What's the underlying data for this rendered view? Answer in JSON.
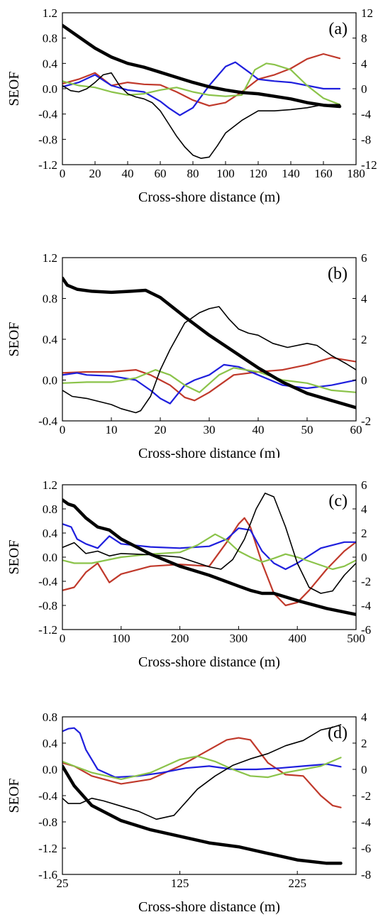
{
  "chart_data": [
    {
      "type": "line",
      "panel_label": "(a)",
      "xlabel": "Cross-shore distance (m)",
      "ylabel": "SEOF",
      "xlim": [
        0,
        180
      ],
      "xticks": [
        0,
        20,
        40,
        60,
        80,
        100,
        120,
        140,
        160,
        180
      ],
      "ylim": [
        -1.2,
        1.2
      ],
      "yticks": [
        "-1.2",
        "-0.8",
        "-0.4",
        "0.0",
        "0.4",
        "0.8",
        "1.2"
      ],
      "y2lim": [
        -12,
        12
      ],
      "y2ticks": [
        "-12",
        "-8",
        "-4",
        "0",
        "4",
        "8",
        "12"
      ],
      "series": [
        {
          "color": "#c0392b",
          "width": 2.2,
          "axis": "left",
          "x": [
            0,
            10,
            20,
            30,
            40,
            50,
            60,
            70,
            80,
            90,
            100,
            110,
            120,
            130,
            140,
            150,
            160,
            170
          ],
          "y": [
            0.08,
            0.15,
            0.25,
            0.05,
            0.1,
            0.07,
            0.06,
            -0.05,
            -0.18,
            -0.27,
            -0.22,
            -0.05,
            0.15,
            0.22,
            0.32,
            0.47,
            0.55,
            0.48
          ]
        },
        {
          "color": "#1f1fdd",
          "width": 2.2,
          "axis": "left",
          "x": [
            0,
            10,
            20,
            30,
            40,
            50,
            60,
            65,
            72,
            80,
            90,
            100,
            106,
            115,
            120,
            130,
            140,
            150,
            160,
            170
          ],
          "y": [
            0.03,
            0.1,
            0.22,
            0.05,
            -0.02,
            -0.05,
            -0.2,
            -0.3,
            -0.42,
            -0.3,
            0.05,
            0.35,
            0.42,
            0.25,
            0.15,
            0.12,
            0.1,
            0.05,
            0.0,
            0.0
          ]
        },
        {
          "color": "#8bc34a",
          "width": 2.2,
          "axis": "left",
          "x": [
            0,
            10,
            20,
            30,
            40,
            50,
            60,
            70,
            80,
            90,
            100,
            110,
            118,
            125,
            130,
            140,
            150,
            160,
            170
          ],
          "y": [
            0.12,
            0.05,
            0.02,
            -0.05,
            -0.1,
            -0.08,
            -0.02,
            0.02,
            -0.05,
            -0.1,
            -0.12,
            -0.1,
            0.3,
            0.4,
            0.38,
            0.3,
            0.05,
            -0.15,
            -0.25
          ]
        },
        {
          "color": "#000000",
          "width": 1.6,
          "axis": "right",
          "x": [
            0,
            5,
            10,
            15,
            20,
            25,
            30,
            35,
            40,
            45,
            50,
            55,
            60,
            65,
            70,
            75,
            80,
            85,
            90,
            95,
            100,
            110,
            120,
            130,
            140,
            150,
            160,
            170
          ],
          "y": [
            0.5,
            -0.3,
            -0.5,
            0.0,
            1.0,
            2.2,
            2.5,
            0.5,
            -0.8,
            -1.3,
            -1.6,
            -2.2,
            -3.5,
            -5.5,
            -7.5,
            -9.2,
            -10.5,
            -11,
            -10.8,
            -9,
            -7,
            -5,
            -3.5,
            -3.5,
            -3.3,
            -3,
            -2.5,
            -2.5
          ]
        },
        {
          "color": "#000000",
          "width": 4.5,
          "axis": "left",
          "x": [
            0,
            10,
            20,
            30,
            40,
            50,
            60,
            70,
            80,
            90,
            100,
            110,
            120,
            130,
            140,
            150,
            160,
            170
          ],
          "y": [
            1.0,
            0.82,
            0.64,
            0.5,
            0.4,
            0.34,
            0.26,
            0.18,
            0.1,
            0.03,
            -0.02,
            -0.06,
            -0.08,
            -0.12,
            -0.16,
            -0.22,
            -0.26,
            -0.28
          ]
        }
      ]
    },
    {
      "type": "line",
      "panel_label": "(b)",
      "xlabel": "Cross-shore distance (m)",
      "ylabel": "SEOF",
      "xlim": [
        0,
        60
      ],
      "xticks": [
        0,
        10,
        20,
        30,
        40,
        50,
        60
      ],
      "ylim": [
        -0.4,
        1.2
      ],
      "yticks": [
        "-0.4",
        "0.0",
        "0.4",
        "0.8",
        "1.2"
      ],
      "y2lim": [
        -2,
        6
      ],
      "y2ticks": [
        "-2",
        "0",
        "2",
        "4",
        "6"
      ],
      "series": [
        {
          "color": "#c0392b",
          "width": 2.2,
          "axis": "left",
          "x": [
            0,
            5,
            10,
            15,
            18,
            20,
            22,
            25,
            27,
            30,
            35,
            40,
            45,
            50,
            55,
            60
          ],
          "y": [
            0.07,
            0.08,
            0.08,
            0.1,
            0.05,
            0.0,
            -0.05,
            -0.17,
            -0.2,
            -0.12,
            0.05,
            0.08,
            0.1,
            0.15,
            0.22,
            0.18
          ]
        },
        {
          "color": "#1f1fdd",
          "width": 2.2,
          "axis": "left",
          "x": [
            0,
            3,
            5,
            10,
            15,
            18,
            20,
            22,
            25,
            27,
            30,
            33,
            36,
            40,
            45,
            50,
            55,
            60
          ],
          "y": [
            0.05,
            0.07,
            0.05,
            0.04,
            0.0,
            -0.1,
            -0.18,
            -0.23,
            -0.05,
            0.0,
            0.05,
            0.15,
            0.13,
            0.05,
            -0.05,
            -0.08,
            -0.05,
            0.0
          ]
        },
        {
          "color": "#8bc34a",
          "width": 2.2,
          "axis": "left",
          "x": [
            0,
            5,
            10,
            15,
            19,
            22,
            25,
            28,
            32,
            35,
            40,
            45,
            50,
            55,
            60
          ],
          "y": [
            -0.03,
            -0.02,
            -0.02,
            0.02,
            0.1,
            0.05,
            -0.05,
            -0.12,
            0.05,
            0.12,
            0.08,
            0.0,
            -0.03,
            -0.1,
            -0.12
          ]
        },
        {
          "color": "#000000",
          "width": 1.6,
          "axis": "right",
          "x": [
            0,
            2,
            5,
            10,
            12,
            15,
            16,
            18,
            20,
            22,
            25,
            28,
            30,
            32,
            34,
            36,
            38,
            40,
            43,
            46,
            50,
            52,
            55,
            58,
            60
          ],
          "y": [
            -0.5,
            -0.8,
            -0.9,
            -1.2,
            -1.4,
            -1.6,
            -1.5,
            -0.8,
            0.5,
            1.5,
            2.8,
            3.3,
            3.5,
            3.6,
            3.0,
            2.5,
            2.3,
            2.2,
            1.8,
            1.6,
            1.8,
            1.7,
            1.2,
            0.8,
            0.5
          ]
        },
        {
          "color": "#000000",
          "width": 4.5,
          "axis": "left",
          "x": [
            0,
            1,
            3,
            6,
            10,
            14,
            17,
            20,
            25,
            30,
            35,
            40,
            45,
            50,
            55,
            60
          ],
          "y": [
            1.0,
            0.93,
            0.89,
            0.87,
            0.86,
            0.87,
            0.88,
            0.81,
            0.62,
            0.44,
            0.28,
            0.12,
            -0.02,
            -0.13,
            -0.2,
            -0.27
          ]
        }
      ]
    },
    {
      "type": "line",
      "panel_label": "(c)",
      "xlabel": "Cross-shore distance (m)",
      "ylabel": "SEOF",
      "xlim": [
        0,
        500
      ],
      "xticks": [
        0,
        100,
        200,
        300,
        400,
        500
      ],
      "ylim": [
        -1.2,
        1.2
      ],
      "yticks": [
        "-1.2",
        "-0.8",
        "-0.4",
        "0.0",
        "0.4",
        "0.8",
        "1.2"
      ],
      "y2lim": [
        -6,
        6
      ],
      "y2ticks": [
        "-6",
        "-4",
        "-2",
        "0",
        "2",
        "4",
        "6"
      ],
      "series": [
        {
          "color": "#c0392b",
          "width": 2.2,
          "axis": "left",
          "x": [
            0,
            20,
            40,
            60,
            80,
            100,
            150,
            200,
            250,
            280,
            300,
            310,
            320,
            340,
            360,
            380,
            400,
            420,
            450,
            480,
            500
          ],
          "y": [
            -0.55,
            -0.5,
            -0.25,
            -0.1,
            -0.42,
            -0.28,
            -0.15,
            -0.12,
            -0.15,
            0.25,
            0.55,
            0.65,
            0.5,
            -0.1,
            -0.6,
            -0.8,
            -0.75,
            -0.55,
            -0.2,
            0.1,
            0.25
          ]
        },
        {
          "color": "#1f1fdd",
          "width": 2.2,
          "axis": "left",
          "x": [
            0,
            15,
            25,
            40,
            60,
            80,
            100,
            150,
            200,
            250,
            280,
            300,
            320,
            340,
            360,
            380,
            400,
            440,
            480,
            500
          ],
          "y": [
            0.55,
            0.5,
            0.3,
            0.22,
            0.15,
            0.35,
            0.22,
            0.17,
            0.15,
            0.18,
            0.3,
            0.48,
            0.45,
            0.1,
            -0.1,
            -0.2,
            -0.1,
            0.15,
            0.25,
            0.25
          ]
        },
        {
          "color": "#8bc34a",
          "width": 2.2,
          "axis": "left",
          "x": [
            0,
            20,
            50,
            100,
            150,
            200,
            230,
            260,
            280,
            300,
            320,
            340,
            360,
            380,
            400,
            430,
            460,
            480,
            500
          ],
          "y": [
            -0.05,
            -0.1,
            -0.1,
            0.0,
            0.05,
            0.08,
            0.2,
            0.38,
            0.28,
            0.1,
            0.0,
            -0.08,
            -0.02,
            0.05,
            0.0,
            -0.1,
            -0.2,
            -0.15,
            -0.05
          ]
        },
        {
          "color": "#000000",
          "width": 1.6,
          "axis": "right",
          "x": [
            0,
            20,
            40,
            60,
            80,
            100,
            150,
            200,
            250,
            270,
            290,
            310,
            330,
            345,
            360,
            380,
            400,
            420,
            440,
            460,
            480,
            500
          ],
          "y": [
            0.8,
            1.2,
            0.3,
            0.5,
            0.1,
            0.3,
            0.2,
            0.0,
            -0.8,
            -1.0,
            -0.2,
            1.5,
            4.0,
            5.3,
            5.0,
            2.5,
            -0.5,
            -2.5,
            -3.0,
            -2.8,
            -1.5,
            -0.5
          ]
        },
        {
          "color": "#000000",
          "width": 4.5,
          "axis": "left",
          "x": [
            0,
            10,
            20,
            40,
            60,
            80,
            100,
            150,
            200,
            250,
            300,
            320,
            340,
            360,
            400,
            450,
            500
          ],
          "y": [
            0.95,
            0.88,
            0.85,
            0.65,
            0.5,
            0.45,
            0.3,
            0.05,
            -0.15,
            -0.3,
            -0.48,
            -0.55,
            -0.6,
            -0.6,
            -0.72,
            -0.85,
            -0.95
          ]
        }
      ]
    },
    {
      "type": "line",
      "panel_label": "(d)",
      "xlabel": "Cross-shore distance (m)",
      "ylabel": "SEOF",
      "xlim": [
        25,
        275
      ],
      "xticks": [
        25,
        125,
        225
      ],
      "ylim": [
        -1.6,
        0.8
      ],
      "yticks": [
        "-1.6",
        "-1.2",
        "-0.8",
        "-0.4",
        "0.0",
        "0.4",
        "0.8"
      ],
      "y2lim": [
        -8,
        4
      ],
      "y2ticks": [
        "-8",
        "-6",
        "-4",
        "-2",
        "0",
        "2",
        "4"
      ],
      "series": [
        {
          "color": "#c0392b",
          "width": 2.2,
          "axis": "left",
          "x": [
            25,
            35,
            50,
            75,
            100,
            125,
            150,
            165,
            175,
            185,
            200,
            215,
            230,
            245,
            255,
            262
          ],
          "y": [
            0.1,
            0.05,
            -0.1,
            -0.22,
            -0.15,
            0.05,
            0.3,
            0.45,
            0.48,
            0.45,
            0.1,
            -0.08,
            -0.1,
            -0.4,
            -0.55,
            -0.58
          ]
        },
        {
          "color": "#1f1fdd",
          "width": 2.2,
          "axis": "left",
          "x": [
            25,
            30,
            35,
            40,
            45,
            55,
            70,
            90,
            110,
            130,
            150,
            170,
            190,
            210,
            230,
            250,
            262
          ],
          "y": [
            0.58,
            0.62,
            0.63,
            0.55,
            0.3,
            0.0,
            -0.12,
            -0.1,
            -0.05,
            0.02,
            0.05,
            0.0,
            0.0,
            0.02,
            0.05,
            0.08,
            0.04
          ]
        },
        {
          "color": "#8bc34a",
          "width": 2.2,
          "axis": "left",
          "x": [
            25,
            35,
            50,
            75,
            100,
            125,
            140,
            155,
            170,
            185,
            200,
            215,
            230,
            245,
            262
          ],
          "y": [
            0.12,
            0.05,
            -0.05,
            -0.15,
            -0.05,
            0.15,
            0.2,
            0.12,
            0.0,
            -0.1,
            -0.12,
            -0.05,
            0.0,
            0.05,
            0.18
          ]
        },
        {
          "color": "#000000",
          "width": 1.6,
          "axis": "right",
          "x": [
            25,
            30,
            40,
            50,
            60,
            75,
            90,
            105,
            120,
            130,
            140,
            155,
            170,
            185,
            200,
            215,
            230,
            245,
            255,
            262
          ],
          "y": [
            -2.2,
            -2.6,
            -2.6,
            -2.2,
            -2.4,
            -2.8,
            -3.2,
            -3.8,
            -3.5,
            -2.5,
            -1.5,
            -0.5,
            0.3,
            0.8,
            1.2,
            1.8,
            2.2,
            3.0,
            3.2,
            3.4
          ]
        },
        {
          "color": "#000000",
          "width": 4.5,
          "axis": "left",
          "x": [
            25,
            35,
            50,
            75,
            100,
            125,
            150,
            175,
            200,
            225,
            250,
            262
          ],
          "y": [
            0.05,
            -0.25,
            -0.55,
            -0.78,
            -0.92,
            -1.02,
            -1.12,
            -1.18,
            -1.28,
            -1.38,
            -1.43,
            -1.43
          ]
        }
      ]
    }
  ]
}
